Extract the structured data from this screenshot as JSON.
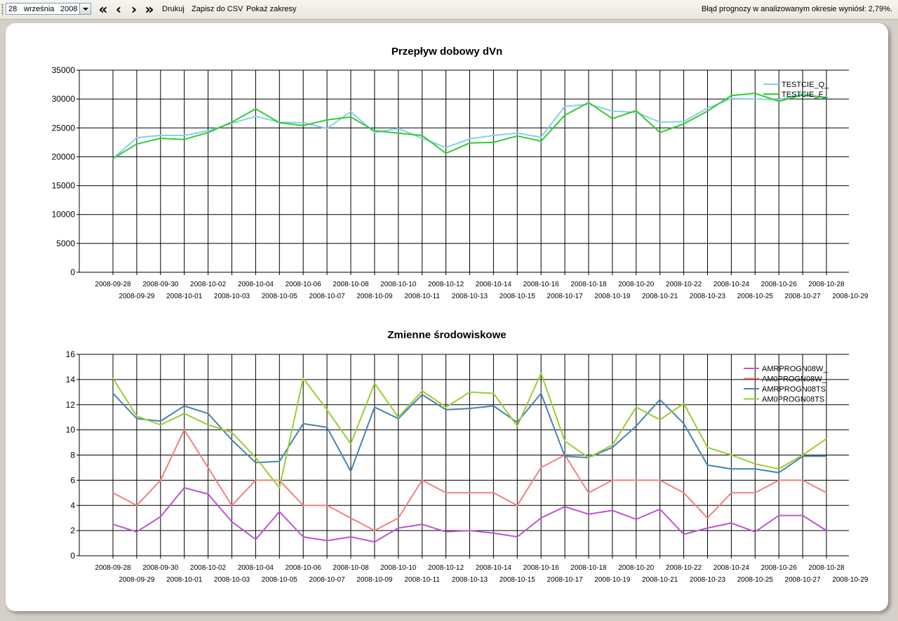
{
  "toolbar": {
    "date": {
      "day": "28",
      "month": "września",
      "year": "2008"
    },
    "icons": {
      "first": "double-chevron-left-icon",
      "prev": "chevron-left-icon",
      "next": "chevron-right-icon",
      "last": "double-chevron-right-icon",
      "dropdown": "triangle-down-icon"
    },
    "print_label": "Drukuj",
    "csv_label": "Zapisz do CSV",
    "ranges_label": "Pokaż zakresy",
    "status_text": "Błąd prognozy w analizowanym okresie wyniósł: 2,79%."
  },
  "chart_data": [
    {
      "type": "line",
      "title": "Przepływ dobowy dVn",
      "x": [
        "2008-09-28",
        "2008-09-29",
        "2008-09-30",
        "2008-10-01",
        "2008-10-02",
        "2008-10-03",
        "2008-10-04",
        "2008-10-05",
        "2008-10-06",
        "2008-10-07",
        "2008-10-08",
        "2008-10-09",
        "2008-10-10",
        "2008-10-11",
        "2008-10-12",
        "2008-10-13",
        "2008-10-14",
        "2008-10-15",
        "2008-10-16",
        "2008-10-17",
        "2008-10-18",
        "2008-10-19",
        "2008-10-20",
        "2008-10-21",
        "2008-10-22",
        "2008-10-23",
        "2008-10-24",
        "2008-10-25",
        "2008-10-26",
        "2008-10-27",
        "2008-10-28",
        "2008-10-29"
      ],
      "ylim": [
        0,
        35000
      ],
      "yticks": [
        0,
        5000,
        10000,
        15000,
        20000,
        25000,
        30000,
        35000
      ],
      "grid": true,
      "legend_position": "top-right",
      "series": [
        {
          "name": "TESTCIE_Q_",
          "color": "#87ceeb",
          "values": [
            19700,
            23300,
            23700,
            23700,
            24500,
            25800,
            27000,
            26000,
            25900,
            24900,
            27800,
            24200,
            24900,
            23200,
            21600,
            23100,
            23700,
            24100,
            23400,
            28700,
            29100,
            27900,
            27700,
            26000,
            26100,
            28400,
            30100,
            30000,
            29900,
            30900,
            30100,
            null
          ]
        },
        {
          "name": "TESTCIE_F_",
          "color": "#32cd32",
          "values": [
            19700,
            22200,
            23200,
            23000,
            24200,
            26000,
            28300,
            25900,
            25400,
            26400,
            26900,
            24500,
            24100,
            23700,
            20600,
            22400,
            22500,
            23600,
            22700,
            27200,
            29400,
            26600,
            28000,
            24200,
            25700,
            27900,
            30600,
            31000,
            29600,
            30700,
            30300,
            null
          ]
        }
      ]
    },
    {
      "type": "line",
      "title": "Zmienne środowiskowe",
      "x": [
        "2008-09-28",
        "2008-09-29",
        "2008-09-30",
        "2008-10-01",
        "2008-10-02",
        "2008-10-03",
        "2008-10-04",
        "2008-10-05",
        "2008-10-06",
        "2008-10-07",
        "2008-10-08",
        "2008-10-09",
        "2008-10-10",
        "2008-10-11",
        "2008-10-12",
        "2008-10-13",
        "2008-10-14",
        "2008-10-15",
        "2008-10-16",
        "2008-10-17",
        "2008-10-18",
        "2008-10-19",
        "2008-10-20",
        "2008-10-21",
        "2008-10-22",
        "2008-10-23",
        "2008-10-24",
        "2008-10-25",
        "2008-10-26",
        "2008-10-27",
        "2008-10-28",
        "2008-10-29"
      ],
      "ylim": [
        0,
        16
      ],
      "yticks": [
        0,
        2,
        4,
        6,
        8,
        10,
        12,
        14,
        16
      ],
      "grid": true,
      "legend_position": "top-right",
      "series": [
        {
          "name": "AMRPROGN08W_",
          "color": "#ba55d3",
          "values": [
            2.5,
            1.9,
            3.1,
            5.4,
            4.9,
            2.7,
            1.3,
            3.5,
            1.5,
            1.2,
            1.5,
            1.1,
            2.2,
            2.5,
            1.9,
            2.0,
            1.8,
            1.5,
            3.0,
            3.9,
            3.3,
            3.6,
            2.9,
            3.7,
            1.7,
            2.2,
            2.6,
            1.9,
            3.2,
            3.2,
            2.0,
            null
          ]
        },
        {
          "name": "AM0PROGN08W_",
          "color": "#f08080",
          "values": [
            5,
            4,
            6,
            10,
            7,
            4,
            6,
            6,
            4,
            4,
            3,
            2,
            3,
            6,
            5,
            5,
            5,
            4,
            7,
            8,
            5,
            6,
            6,
            6,
            5,
            3,
            5,
            5,
            6,
            6,
            5,
            null
          ]
        },
        {
          "name": "AMRPROGN08TS",
          "color": "#4682b4",
          "values": [
            12.9,
            10.9,
            10.7,
            11.9,
            11.3,
            9.2,
            7.4,
            7.5,
            10.5,
            10.2,
            6.7,
            11.8,
            10.9,
            12.8,
            11.6,
            11.7,
            11.9,
            10.6,
            12.9,
            7.9,
            7.8,
            8.6,
            10.3,
            12.4,
            10.5,
            7.2,
            6.9,
            6.9,
            6.6,
            7.9,
            7.9,
            null
          ]
        },
        {
          "name": "AM0PROGN08TS",
          "color": "#9acd32",
          "values": [
            14.1,
            11.1,
            10.4,
            11.3,
            10.4,
            9.8,
            7.8,
            5.4,
            14.1,
            11.6,
            8.9,
            13.7,
            11.0,
            13.1,
            11.8,
            13.0,
            12.9,
            10.3,
            14.5,
            9.1,
            7.8,
            8.8,
            11.8,
            10.8,
            12.1,
            8.6,
            8.0,
            7.3,
            6.9,
            8.0,
            9.3,
            null
          ]
        }
      ]
    }
  ]
}
